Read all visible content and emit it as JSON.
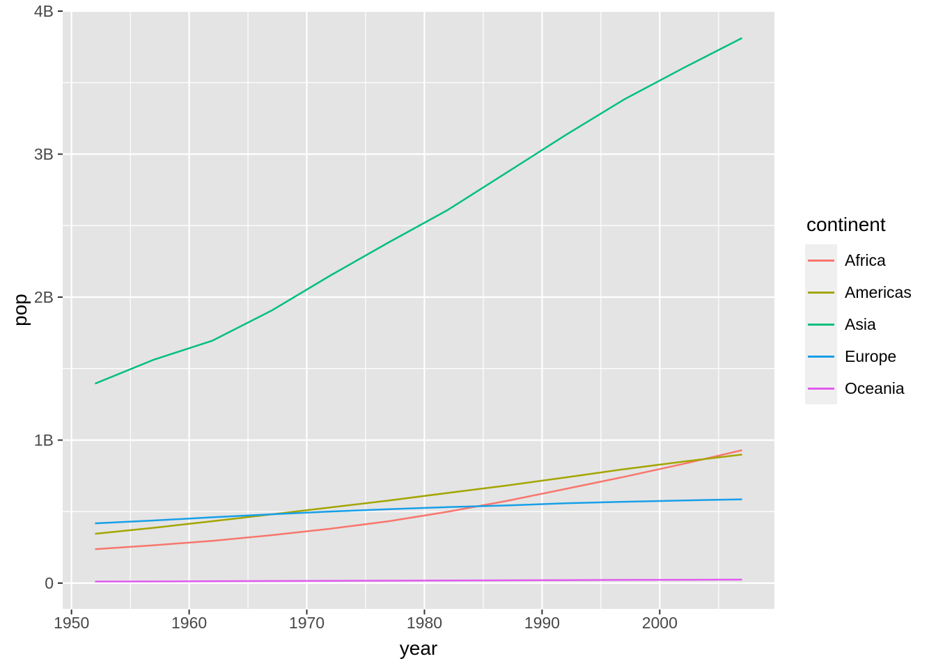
{
  "chart_data": {
    "type": "line",
    "title": "",
    "xlabel": "year",
    "ylabel": "pop",
    "values_unit": "billions of people",
    "x": [
      1952,
      1957,
      1962,
      1967,
      1972,
      1977,
      1982,
      1987,
      1992,
      1997,
      2002,
      2007
    ],
    "series": [
      {
        "name": "Africa",
        "color": "#F8766D",
        "values": [
          0.2376,
          0.2648,
          0.296,
          0.3353,
          0.3799,
          0.4331,
          0.4994,
          0.5748,
          0.6591,
          0.7438,
          0.8337,
          0.9295
        ]
      },
      {
        "name": "Americas",
        "color": "#A3A500",
        "values": [
          0.3452,
          0.3869,
          0.4333,
          0.4807,
          0.5294,
          0.5781,
          0.6307,
          0.6827,
          0.7393,
          0.7969,
          0.8498,
          0.8989
        ]
      },
      {
        "name": "Asia",
        "color": "#00BF7D",
        "values": [
          1.3954,
          1.5628,
          1.6964,
          1.9057,
          2.151,
          2.3845,
          2.6101,
          2.8716,
          3.1333,
          3.3833,
          3.6018,
          3.812
        ]
      },
      {
        "name": "Europe",
        "color": "#179FE8",
        "values": [
          0.4181,
          0.4379,
          0.4604,
          0.4812,
          0.5006,
          0.5172,
          0.5313,
          0.5431,
          0.5581,
          0.5689,
          0.5782,
          0.5861
        ]
      },
      {
        "name": "Oceania",
        "color": "#E15BEF",
        "values": [
          0.0107,
          0.0119,
          0.0132,
          0.0146,
          0.0161,
          0.0172,
          0.0184,
          0.0196,
          0.0209,
          0.0222,
          0.0234,
          0.0245
        ]
      }
    ],
    "x_ticks": [
      {
        "value": 1950,
        "label": "1950"
      },
      {
        "value": 1960,
        "label": "1960"
      },
      {
        "value": 1970,
        "label": "1970"
      },
      {
        "value": 1980,
        "label": "1980"
      },
      {
        "value": 1990,
        "label": "1990"
      },
      {
        "value": 2000,
        "label": "2000"
      }
    ],
    "y_ticks": [
      {
        "value": 0,
        "label": "0"
      },
      {
        "value": 1,
        "label": "1B"
      },
      {
        "value": 2,
        "label": "2B"
      },
      {
        "value": 3,
        "label": "3B"
      },
      {
        "value": 4,
        "label": "4B"
      }
    ],
    "x_minor": [
      1955,
      1965,
      1975,
      1985,
      1995,
      2005
    ],
    "y_minor": [
      0.5,
      1.5,
      2.5,
      3.5
    ],
    "xlim": [
      1949.25,
      2009.75
    ],
    "ylim": [
      -0.18,
      4.0
    ],
    "grid": true,
    "legend": {
      "title": "continent",
      "position": "right"
    }
  },
  "colors": {
    "panel_bg": "#E4E4E4",
    "grid": "#FFFFFF",
    "tick_mark": "#333333",
    "tick_label": "#474747",
    "axis_title": "#000000",
    "legend_key_bg": "#EFEFEF",
    "figure_bg": "#FFFFFF"
  }
}
